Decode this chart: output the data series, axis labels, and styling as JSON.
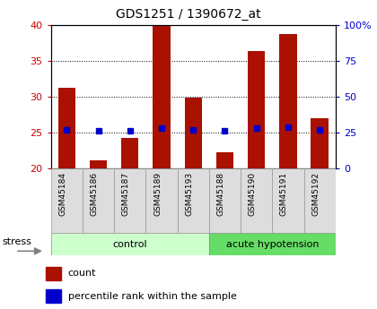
{
  "title": "GDS1251 / 1390672_at",
  "samples": [
    "GSM45184",
    "GSM45186",
    "GSM45187",
    "GSM45189",
    "GSM45193",
    "GSM45188",
    "GSM45190",
    "GSM45191",
    "GSM45192"
  ],
  "counts": [
    31.2,
    21.1,
    24.2,
    39.8,
    29.8,
    22.2,
    36.3,
    38.7,
    27.0
  ],
  "percentiles": [
    27,
    26,
    26.3,
    28,
    27,
    26,
    28,
    29,
    27
  ],
  "ylim_left": [
    20,
    40
  ],
  "ylim_right": [
    0,
    100
  ],
  "yticks_left": [
    20,
    25,
    30,
    35,
    40
  ],
  "yticks_right": [
    0,
    25,
    50,
    75,
    100
  ],
  "ytick_labels_right": [
    "0",
    "25",
    "50",
    "75",
    "100%"
  ],
  "groups": [
    {
      "label": "control",
      "n_samples": 5,
      "color": "#ccffcc"
    },
    {
      "label": "acute hypotension",
      "n_samples": 4,
      "color": "#66dd66"
    }
  ],
  "bar_color": "#aa1100",
  "percentile_color": "#0000cc",
  "bar_width": 0.55,
  "bg_color": "#ffffff",
  "plot_bg": "#ffffff",
  "stress_label": "stress",
  "left_axis_color": "#cc0000",
  "right_axis_color": "#0000cc",
  "tick_label_bg": "#dddddd",
  "title_fontsize": 10
}
